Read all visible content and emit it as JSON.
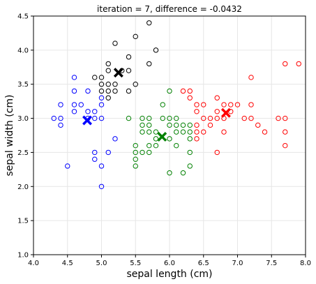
{
  "chart_data": {
    "type": "scatter",
    "title": "iteration = 7, difference = -0.0432",
    "xlabel": "sepal length (cm)",
    "ylabel": "sepal width (cm)",
    "xlim": [
      4.0,
      8.0
    ],
    "ylim": [
      1.0,
      4.5
    ],
    "xticks": [
      "4.0",
      "4.5",
      "5.0",
      "5.5",
      "6.0",
      "6.5",
      "7.0",
      "7.5",
      "8.0"
    ],
    "yticks": [
      "1.0",
      "1.5",
      "2.0",
      "2.5",
      "3.0",
      "3.5",
      "4.0",
      "4.5"
    ],
    "grid": true,
    "series": [
      {
        "color": "#0000ff",
        "marker": "hollow-circle",
        "points": [
          [
            4.3,
            3.0
          ],
          [
            4.4,
            3.2
          ],
          [
            4.4,
            3.0
          ],
          [
            4.4,
            2.9
          ],
          [
            4.5,
            2.3
          ],
          [
            4.6,
            3.6
          ],
          [
            4.6,
            3.4
          ],
          [
            4.6,
            3.2
          ],
          [
            4.6,
            3.1
          ],
          [
            4.7,
            3.2
          ],
          [
            4.8,
            3.4
          ],
          [
            4.8,
            3.1
          ],
          [
            4.8,
            3.0
          ],
          [
            4.9,
            3.1
          ],
          [
            4.9,
            3.0
          ],
          [
            4.9,
            2.5
          ],
          [
            4.9,
            2.4
          ],
          [
            5.0,
            3.3
          ],
          [
            5.0,
            3.2
          ],
          [
            5.0,
            3.0
          ],
          [
            5.0,
            2.3
          ],
          [
            5.0,
            2.0
          ],
          [
            5.1,
            2.5
          ],
          [
            5.2,
            2.7
          ]
        ]
      },
      {
        "color": "#000000",
        "marker": "hollow-circle",
        "points": [
          [
            4.9,
            3.6
          ],
          [
            5.0,
            3.6
          ],
          [
            5.0,
            3.5
          ],
          [
            5.0,
            3.4
          ],
          [
            5.1,
            3.8
          ],
          [
            5.1,
            3.7
          ],
          [
            5.1,
            3.5
          ],
          [
            5.1,
            3.4
          ],
          [
            5.1,
            3.3
          ],
          [
            5.2,
            4.1
          ],
          [
            5.2,
            3.5
          ],
          [
            5.2,
            3.4
          ],
          [
            5.3,
            3.7
          ],
          [
            5.4,
            3.9
          ],
          [
            5.4,
            3.7
          ],
          [
            5.4,
            3.4
          ],
          [
            5.5,
            4.2
          ],
          [
            5.5,
            3.5
          ],
          [
            5.7,
            4.4
          ],
          [
            5.7,
            3.8
          ],
          [
            5.8,
            4.0
          ]
        ]
      },
      {
        "color": "#008000",
        "marker": "hollow-circle",
        "points": [
          [
            5.4,
            3.0
          ],
          [
            5.5,
            2.6
          ],
          [
            5.5,
            2.5
          ],
          [
            5.5,
            2.4
          ],
          [
            5.5,
            2.3
          ],
          [
            5.6,
            3.0
          ],
          [
            5.6,
            2.9
          ],
          [
            5.6,
            2.8
          ],
          [
            5.6,
            2.5
          ],
          [
            5.7,
            3.0
          ],
          [
            5.7,
            2.9
          ],
          [
            5.7,
            2.8
          ],
          [
            5.7,
            2.6
          ],
          [
            5.7,
            2.5
          ],
          [
            5.8,
            2.8
          ],
          [
            5.8,
            2.7
          ],
          [
            5.8,
            2.6
          ],
          [
            5.9,
            3.2
          ],
          [
            5.9,
            3.0
          ],
          [
            6.0,
            3.4
          ],
          [
            6.0,
            3.0
          ],
          [
            6.0,
            2.9
          ],
          [
            6.0,
            2.7
          ],
          [
            6.0,
            2.2
          ],
          [
            6.1,
            3.0
          ],
          [
            6.1,
            2.9
          ],
          [
            6.1,
            2.8
          ],
          [
            6.1,
            2.6
          ],
          [
            6.2,
            2.9
          ],
          [
            6.2,
            2.8
          ],
          [
            6.2,
            2.2
          ],
          [
            6.3,
            2.9
          ],
          [
            6.3,
            2.8
          ],
          [
            6.3,
            2.7
          ],
          [
            6.3,
            2.5
          ],
          [
            6.3,
            2.3
          ]
        ]
      },
      {
        "color": "#ff0000",
        "marker": "hollow-circle",
        "points": [
          [
            6.2,
            3.4
          ],
          [
            6.3,
            3.4
          ],
          [
            6.3,
            3.3
          ],
          [
            6.4,
            3.2
          ],
          [
            6.4,
            3.1
          ],
          [
            6.4,
            2.9
          ],
          [
            6.4,
            2.8
          ],
          [
            6.4,
            2.7
          ],
          [
            6.5,
            3.2
          ],
          [
            6.5,
            3.0
          ],
          [
            6.5,
            2.8
          ],
          [
            6.6,
            3.0
          ],
          [
            6.6,
            2.9
          ],
          [
            6.7,
            3.3
          ],
          [
            6.7,
            3.1
          ],
          [
            6.7,
            3.0
          ],
          [
            6.7,
            2.5
          ],
          [
            6.8,
            3.2
          ],
          [
            6.8,
            3.0
          ],
          [
            6.8,
            2.8
          ],
          [
            6.9,
            3.2
          ],
          [
            6.9,
            3.1
          ],
          [
            7.0,
            3.2
          ],
          [
            7.1,
            3.0
          ],
          [
            7.2,
            3.6
          ],
          [
            7.2,
            3.2
          ],
          [
            7.2,
            3.0
          ],
          [
            7.3,
            2.9
          ],
          [
            7.4,
            2.8
          ],
          [
            7.6,
            3.0
          ],
          [
            7.7,
            3.8
          ],
          [
            7.7,
            3.0
          ],
          [
            7.7,
            2.8
          ],
          [
            7.7,
            2.6
          ],
          [
            7.9,
            3.8
          ]
        ]
      }
    ],
    "centroids": [
      {
        "color": "#0000ff",
        "x": 4.79,
        "y": 2.97
      },
      {
        "color": "#000000",
        "x": 5.25,
        "y": 3.67
      },
      {
        "color": "#008000",
        "x": 5.89,
        "y": 2.73
      },
      {
        "color": "#ff0000",
        "x": 6.83,
        "y": 3.08
      }
    ]
  }
}
